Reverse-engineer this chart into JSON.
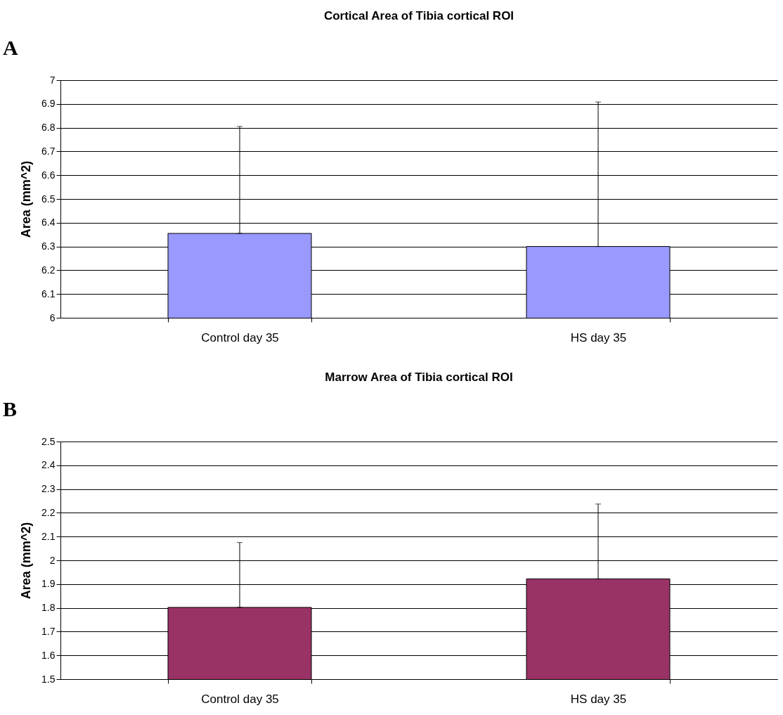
{
  "chart_data": [
    {
      "type": "bar",
      "title": "Cortical Area of Tibia cortical ROI",
      "ylabel": "Area (mm^2)",
      "annotations": [
        "A"
      ],
      "categories": [
        "Control day 35",
        "HS day 35"
      ],
      "values": [
        6.355,
        6.3
      ],
      "color": "#9999ff",
      "errors": [
        [
          6.355,
          6.805
        ],
        [
          6.3,
          6.908
        ]
      ],
      "ylim": [
        6,
        7
      ],
      "yticks": [
        6,
        6.1,
        6.2,
        6.3,
        6.4,
        6.5,
        6.6,
        6.7,
        6.8,
        6.9,
        7
      ],
      "grid": "y"
    },
    {
      "type": "bar",
      "title": "Marrow Area of Tibia cortical ROI",
      "ylabel": "Area (mm^2)",
      "annotations": [
        "B"
      ],
      "categories": [
        "Control day 35",
        "HS day 35"
      ],
      "values": [
        1.802,
        1.922
      ],
      "color": "#993366",
      "errors": [
        [
          1.802,
          2.075
        ],
        [
          1.922,
          2.237
        ]
      ],
      "ylim": [
        1.5,
        2.5
      ],
      "yticks": [
        1.5,
        1.6,
        1.7,
        1.8,
        1.9,
        2,
        2.1,
        2.2,
        2.3,
        2.4,
        2.5
      ],
      "grid": "y"
    }
  ]
}
